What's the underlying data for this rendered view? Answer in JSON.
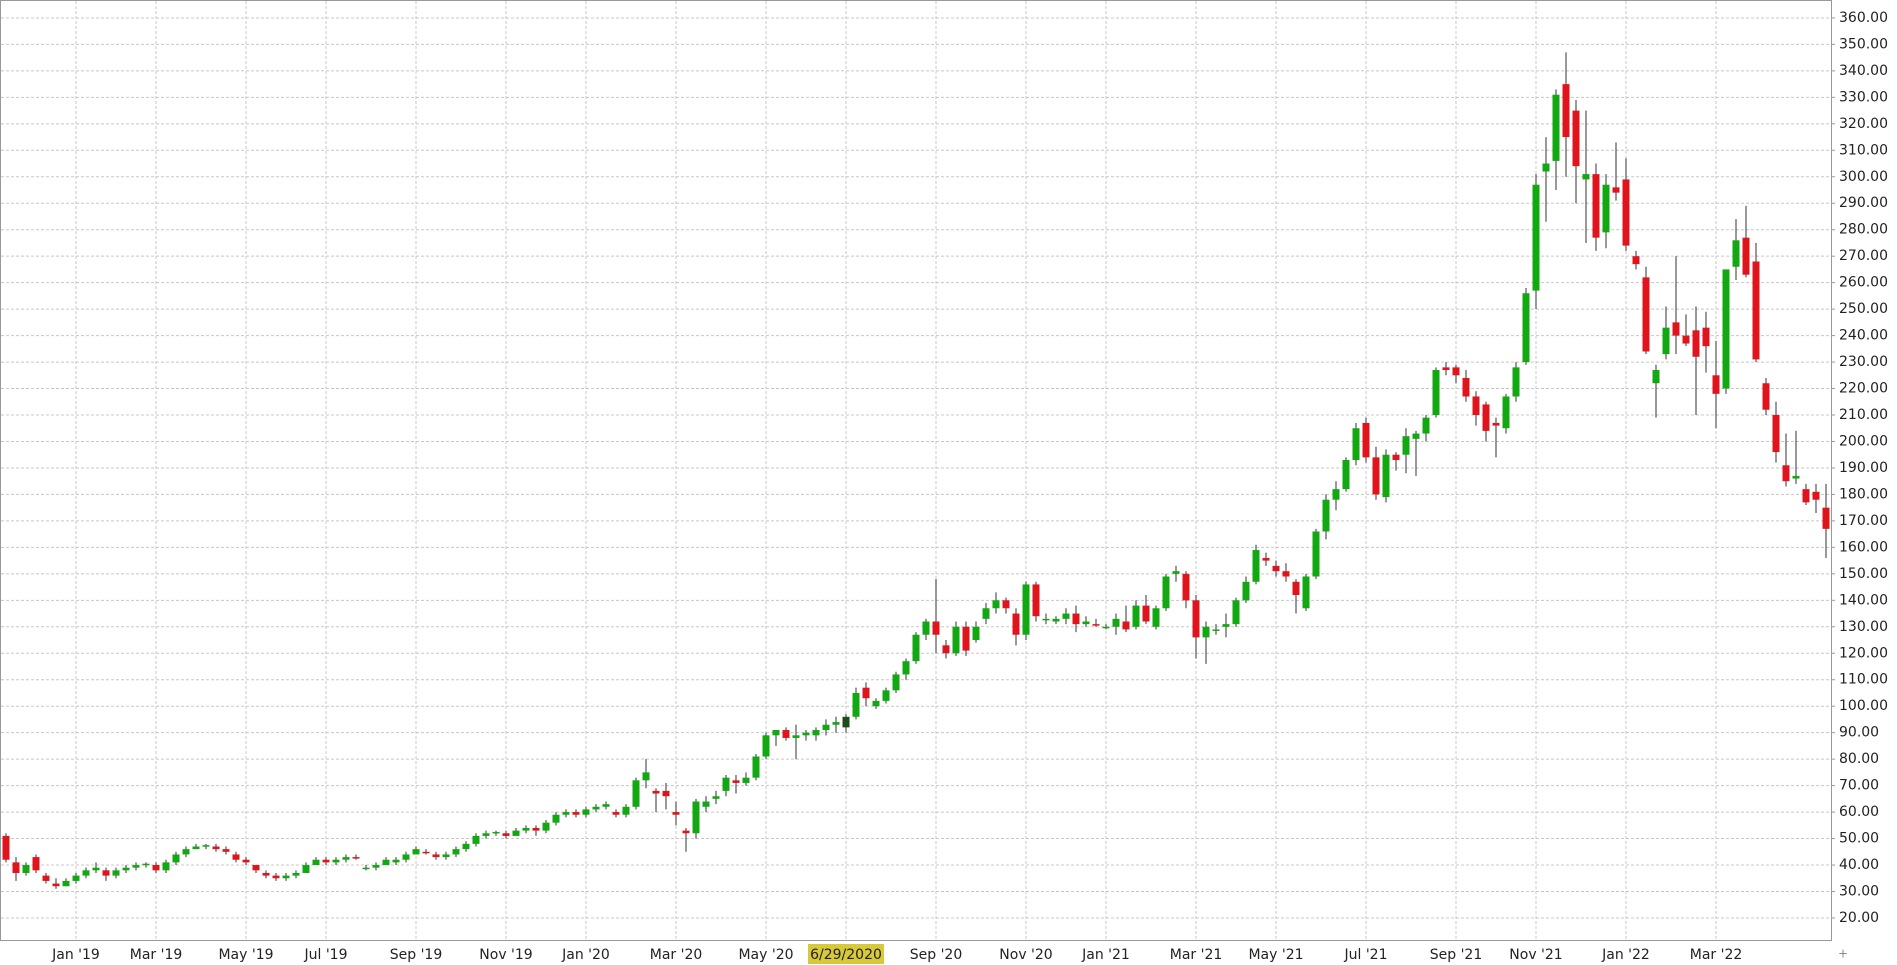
{
  "chart_data": {
    "type": "candlestick",
    "categories": [
      null,
      null,
      null,
      null,
      null,
      null,
      null,
      "Jan '19",
      null,
      null,
      null,
      null,
      null,
      null,
      null,
      "Mar '19",
      null,
      null,
      null,
      null,
      null,
      null,
      null,
      null,
      "May '19",
      null,
      null,
      null,
      null,
      null,
      null,
      null,
      "Jul '19",
      null,
      null,
      null,
      null,
      null,
      null,
      null,
      null,
      "Sep '19",
      null,
      null,
      null,
      null,
      null,
      null,
      null,
      null,
      "Nov '19",
      null,
      null,
      null,
      null,
      null,
      null,
      null,
      "Jan '20",
      null,
      null,
      null,
      null,
      null,
      null,
      null,
      null,
      "Mar '20",
      null,
      null,
      null,
      null,
      null,
      null,
      null,
      null,
      "May '20",
      null,
      null,
      null,
      null,
      null,
      null,
      null,
      "6/29/2020",
      null,
      null,
      null,
      null,
      null,
      null,
      null,
      null,
      "Sep '20",
      null,
      null,
      null,
      null,
      null,
      null,
      null,
      null,
      "Nov '20",
      null,
      null,
      null,
      null,
      null,
      null,
      null,
      "Jan '21",
      null,
      null,
      null,
      null,
      null,
      null,
      null,
      null,
      "Mar '21",
      null,
      null,
      null,
      null,
      null,
      null,
      null,
      "May '21",
      null,
      null,
      null,
      null,
      null,
      null,
      null,
      null,
      "Jul '21",
      null,
      null,
      null,
      null,
      null,
      null,
      null,
      null,
      "Sep '21",
      null,
      null,
      null,
      null,
      null,
      null,
      null,
      "Nov '21",
      null,
      null,
      null,
      null,
      null,
      null,
      null,
      null,
      "Jan '22",
      null,
      null,
      null,
      null,
      null,
      null,
      null,
      null,
      "Mar '22",
      null,
      null,
      null,
      null,
      null,
      null,
      null,
      null,
      null,
      null,
      null
    ],
    "open": [
      51,
      41,
      37,
      43,
      36,
      33,
      32,
      34,
      36,
      38,
      38,
      36,
      38,
      39,
      40,
      40,
      38,
      41,
      44,
      46,
      47,
      47,
      46,
      44,
      42,
      40,
      37,
      36,
      35,
      36,
      37,
      40,
      42,
      41,
      42,
      43,
      39,
      39,
      40,
      41,
      42,
      44,
      45,
      44,
      43,
      44,
      46,
      48,
      51,
      52,
      52,
      51,
      53,
      54,
      53,
      56,
      59,
      60,
      59,
      61,
      62,
      60,
      59,
      62,
      72,
      68,
      68,
      60,
      53,
      52,
      62,
      65,
      68,
      72,
      71,
      73,
      81,
      89,
      91,
      88,
      89,
      89,
      91,
      93,
      92,
      96,
      107,
      100,
      102,
      106,
      112,
      117,
      127,
      132,
      123,
      120,
      130,
      125,
      133,
      137,
      140,
      135,
      127,
      146,
      133,
      132,
      133,
      135,
      131,
      131,
      130,
      130,
      132,
      130,
      138,
      130,
      137,
      150,
      150,
      140,
      126,
      129,
      130,
      131,
      140,
      147,
      156,
      153,
      151,
      147,
      137,
      149,
      166,
      178,
      182,
      193,
      207,
      194,
      179,
      195,
      195,
      201,
      203,
      210,
      228,
      228,
      224,
      217,
      214,
      207,
      205,
      217,
      230,
      257,
      302,
      306,
      335,
      325,
      299,
      301,
      279,
      296,
      299,
      270,
      262,
      222,
      233,
      245,
      240,
      242,
      243,
      225,
      220,
      266,
      277,
      268,
      222,
      210,
      191,
      186,
      182,
      181,
      175
    ],
    "high": [
      52,
      43,
      41,
      44,
      37,
      35,
      35,
      37,
      39,
      41,
      39,
      39,
      40,
      41,
      41,
      41,
      42,
      45,
      47,
      48,
      48,
      48,
      47,
      45,
      43,
      40,
      38,
      37,
      37,
      38,
      41,
      43,
      43,
      43,
      44,
      44,
      40,
      41,
      43,
      43,
      45,
      47,
      46,
      45,
      45,
      47,
      49,
      52,
      53,
      53,
      53,
      54,
      55,
      55,
      57,
      60,
      61,
      61,
      62,
      63,
      64,
      61,
      63,
      73,
      80,
      69,
      71,
      64,
      54,
      65,
      66,
      68,
      74,
      74,
      75,
      82,
      90,
      91,
      92,
      93,
      91,
      92,
      95,
      96,
      97,
      107,
      109,
      103,
      107,
      113,
      118,
      128,
      133,
      148,
      125,
      132,
      132,
      132,
      139,
      143,
      141,
      137,
      147,
      147,
      135,
      134,
      137,
      138,
      134,
      133,
      131,
      135,
      138,
      140,
      142,
      138,
      150,
      153,
      151,
      142,
      132,
      131,
      135,
      141,
      149,
      161,
      158,
      155,
      154,
      148,
      150,
      167,
      180,
      185,
      194,
      207,
      209,
      198,
      197,
      196,
      205,
      204,
      210,
      228,
      230,
      229,
      227,
      219,
      215,
      209,
      218,
      230,
      258,
      301,
      315,
      333,
      347,
      329,
      325,
      305,
      301,
      313,
      307,
      272,
      266,
      229,
      251,
      270,
      248,
      251,
      249,
      238,
      265,
      284,
      289,
      275,
      224,
      215,
      203,
      204,
      184,
      184,
      184
    ],
    "low": [
      41,
      34,
      36,
      37,
      33,
      31,
      32,
      33,
      35,
      37,
      34,
      35,
      37,
      38,
      39,
      37,
      37,
      40,
      43,
      46,
      46,
      45,
      44,
      41,
      40,
      37,
      35,
      34,
      34,
      35,
      37,
      40,
      40,
      40,
      41,
      42,
      38,
      38,
      40,
      40,
      41,
      44,
      44,
      42,
      42,
      43,
      45,
      47,
      50,
      51,
      50,
      51,
      52,
      51,
      52,
      55,
      58,
      58,
      58,
      60,
      61,
      58,
      58,
      61,
      69,
      60,
      61,
      55,
      45,
      50,
      60,
      63,
      66,
      67,
      70,
      72,
      80,
      85,
      87,
      80,
      87,
      87,
      89,
      90,
      90,
      95,
      100,
      99,
      101,
      105,
      110,
      116,
      125,
      120,
      118,
      119,
      119,
      124,
      131,
      135,
      135,
      123,
      125,
      132,
      131,
      131,
      131,
      128,
      130,
      130,
      129,
      127,
      128,
      129,
      131,
      129,
      136,
      147,
      137,
      118,
      116,
      127,
      126,
      130,
      139,
      146,
      153,
      149,
      147,
      135,
      136,
      148,
      163,
      174,
      181,
      191,
      192,
      178,
      177,
      189,
      188,
      187,
      200,
      209,
      225,
      222,
      215,
      206,
      200,
      194,
      203,
      215,
      229,
      250,
      283,
      295,
      300,
      290,
      275,
      272,
      273,
      291,
      272,
      265,
      233,
      209,
      231,
      233,
      236,
      210,
      226,
      205,
      218,
      261,
      262,
      230,
      210,
      192,
      183,
      184,
      176,
      173,
      156
    ],
    "close": [
      42,
      37,
      40,
      38,
      34,
      32,
      34,
      36,
      38,
      39,
      36,
      38,
      39,
      40,
      40.5,
      38,
      41,
      44,
      46,
      47,
      47.5,
      46,
      45,
      42,
      41,
      38,
      36,
      35,
      36,
      37,
      40,
      42,
      41,
      42,
      43,
      42.5,
      39,
      40,
      42,
      42,
      44,
      46,
      44.5,
      43,
      44,
      46,
      48,
      51,
      52,
      52.5,
      51,
      53,
      54,
      53,
      56,
      59,
      60,
      59,
      61,
      62,
      63,
      59,
      62,
      72,
      75,
      67,
      66,
      59,
      52,
      64,
      64,
      66,
      73,
      71,
      73,
      81,
      89,
      91,
      88,
      89,
      90,
      91,
      93,
      94,
      96,
      105,
      103,
      102,
      106,
      112,
      117,
      127,
      132,
      127,
      120,
      130,
      121,
      130,
      137,
      140,
      137,
      127,
      146,
      134,
      133,
      133,
      135,
      131,
      132,
      130.5,
      130,
      133,
      129,
      138,
      132,
      137,
      149,
      151,
      140,
      126,
      130,
      129,
      131,
      140,
      147,
      159,
      155,
      151,
      149,
      142,
      149,
      166,
      178,
      182,
      193,
      205,
      194,
      180,
      195,
      193,
      202,
      203,
      209,
      227,
      227,
      225,
      217,
      210,
      204,
      206,
      217,
      228,
      256,
      297,
      305,
      331,
      315,
      304,
      301,
      277,
      297,
      294,
      274,
      267,
      234,
      227,
      243,
      240,
      237,
      232,
      236,
      218,
      265,
      276,
      263,
      231,
      212,
      196,
      185,
      187,
      177,
      178,
      167
    ],
    "up_color": "#12a812",
    "down_color": "#e0141c",
    "cursor": 84,
    "cursor_color": "#1f4a1f",
    "ylim": [
      11.3,
      366.4
    ],
    "yticks": [
      {
        "value": 20,
        "label": "20.00"
      },
      {
        "value": 30,
        "label": "30.00"
      },
      {
        "value": 40,
        "label": "40.00"
      },
      {
        "value": 50,
        "label": "50.00"
      },
      {
        "value": 60,
        "label": "60.00"
      },
      {
        "value": 70,
        "label": "70.00"
      },
      {
        "value": 80,
        "label": "80.00"
      },
      {
        "value": 90,
        "label": "90.00"
      },
      {
        "value": 100,
        "label": "100.00"
      },
      {
        "value": 110,
        "label": "110.00"
      },
      {
        "value": 120,
        "label": "120.00"
      },
      {
        "value": 130,
        "label": "130.00"
      },
      {
        "value": 140,
        "label": "140.00"
      },
      {
        "value": 150,
        "label": "150.00"
      },
      {
        "value": 160,
        "label": "160.00"
      },
      {
        "value": 170,
        "label": "170.00"
      },
      {
        "value": 180,
        "label": "180.00"
      },
      {
        "value": 190,
        "label": "190.00"
      },
      {
        "value": 200,
        "label": "200.00"
      },
      {
        "value": 210,
        "label": "210.00"
      },
      {
        "value": 220,
        "label": "220.00"
      },
      {
        "value": 230,
        "label": "230.00"
      },
      {
        "value": 240,
        "label": "240.00"
      },
      {
        "value": 250,
        "label": "250.00"
      },
      {
        "value": 260,
        "label": "260.00"
      },
      {
        "value": 270,
        "label": "270.00"
      },
      {
        "value": 280,
        "label": "280.00"
      },
      {
        "value": 290,
        "label": "290.00"
      },
      {
        "value": 300,
        "label": "300.00"
      },
      {
        "value": 310,
        "label": "310.00"
      },
      {
        "value": 320,
        "label": "320.00"
      },
      {
        "value": 330,
        "label": "330.00"
      },
      {
        "value": 340,
        "label": "340.00"
      },
      {
        "value": 350,
        "label": "350.00"
      },
      {
        "value": 360,
        "label": "360.00"
      }
    ],
    "grid": true
  }
}
